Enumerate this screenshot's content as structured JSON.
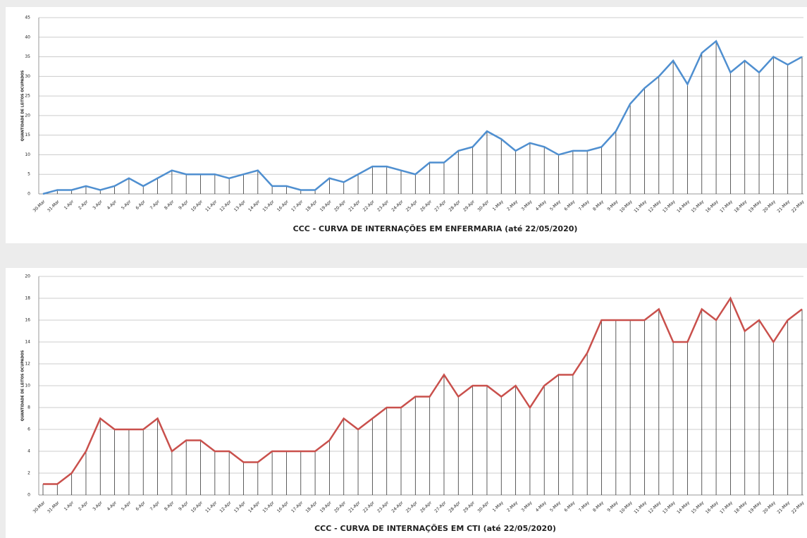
{
  "chart_data": [
    {
      "type": "line",
      "title": "CCC - CURVA DE INTERNAÇÕES EM ENFERMARIA (até 22/05/2020)",
      "y_label": "QUANTIDADE DE LEITOS OCUPADOS",
      "categories": [
        "30-Mar",
        "31-Mar",
        "1-Apr",
        "2-Apr",
        "3-Apr",
        "4-Apr",
        "5-Apr",
        "6-Apr",
        "7-Apr",
        "8-Apr",
        "9-Apr",
        "10-Apr",
        "11-Apr",
        "12-Apr",
        "13-Apr",
        "14-Apr",
        "15-Apr",
        "16-Apr",
        "17-Apr",
        "18-Apr",
        "19-Apr",
        "20-Apr",
        "21-Apr",
        "22-Apr",
        "23-Apr",
        "24-Apr",
        "25-Apr",
        "26-Apr",
        "27-Apr",
        "28-Apr",
        "29-Apr",
        "30-Apr",
        "1-May",
        "2-May",
        "3-May",
        "4-May",
        "5-May",
        "6-May",
        "7-May",
        "8-May",
        "9-May",
        "10-May",
        "11-May",
        "12-May",
        "13-May",
        "14-May",
        "15-May",
        "16-May",
        "17-May",
        "18-May",
        "19-May",
        "20-May",
        "21-May",
        "22-May"
      ],
      "series": [
        {
          "color": "#4f8fd0",
          "values": [
            0,
            1,
            1,
            2,
            1,
            2,
            4,
            2,
            4,
            6,
            5,
            5,
            5,
            4,
            5,
            6,
            2,
            2,
            1,
            1,
            4,
            3,
            5,
            7,
            7,
            6,
            5,
            8,
            8,
            11,
            12,
            16,
            14,
            11,
            13,
            12,
            10,
            11,
            11,
            12,
            16,
            23,
            27,
            30,
            34,
            28,
            36,
            39,
            31,
            34,
            31,
            35,
            33,
            35
          ]
        }
      ],
      "ylim": [
        0,
        45
      ],
      "yticks": [
        0,
        5,
        10,
        15,
        20,
        25,
        30,
        35,
        40,
        45
      ],
      "grid": true
    },
    {
      "type": "line",
      "title": "CCC - CURVA DE INTERNAÇÕES EM CTI (até 22/05/2020)",
      "y_label": "QUANTIDADE DE LEITOS OCUPADOS",
      "categories": [
        "30-Mar",
        "31-Mar",
        "1-Apr",
        "2-Apr",
        "3-Apr",
        "4-Apr",
        "5-Apr",
        "6-Apr",
        "7-Apr",
        "8-Apr",
        "9-Apr",
        "10-Apr",
        "11-Apr",
        "12-Apr",
        "13-Apr",
        "14-Apr",
        "15-Apr",
        "16-Apr",
        "17-Apr",
        "18-Apr",
        "19-Apr",
        "20-Apr",
        "21-Apr",
        "22-Apr",
        "23-Apr",
        "24-Apr",
        "25-Apr",
        "26-Apr",
        "27-Apr",
        "28-Apr",
        "29-Apr",
        "30-Apr",
        "1-May",
        "2-May",
        "3-May",
        "4-May",
        "5-May",
        "6-May",
        "7-May",
        "8-May",
        "9-May",
        "10-May",
        "11-May",
        "12-May",
        "13-May",
        "14-May",
        "15-May",
        "16-May",
        "17-May",
        "18-May",
        "19-May",
        "20-May",
        "21-May",
        "22-May"
      ],
      "series": [
        {
          "color": "#c9504c",
          "values": [
            1,
            1,
            2,
            4,
            7,
            6,
            6,
            6,
            7,
            4,
            5,
            5,
            4,
            4,
            3,
            3,
            4,
            4,
            4,
            4,
            5,
            7,
            6,
            7,
            8,
            8,
            9,
            9,
            11,
            9,
            10,
            10,
            9,
            10,
            8,
            10,
            11,
            11,
            13,
            16,
            16,
            16,
            16,
            17,
            14,
            14,
            17,
            16,
            18,
            15,
            16,
            14,
            16,
            17
          ]
        }
      ],
      "ylim": [
        0,
        20
      ],
      "yticks": [
        0,
        2,
        4,
        6,
        8,
        10,
        12,
        14,
        16,
        18,
        20
      ],
      "grid": true
    }
  ]
}
